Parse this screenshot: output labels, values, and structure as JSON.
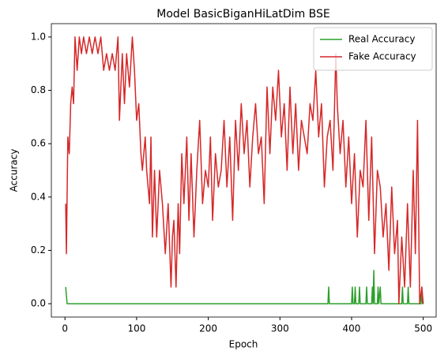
{
  "chart_data": {
    "type": "line",
    "title": "Model BasicBiganHiLatDim BSE",
    "x_label": "Epoch",
    "y_label": "Accuracy",
    "xlim": [
      -19,
      518
    ],
    "ylim": [
      -0.05,
      1.05
    ],
    "xticks": [
      0,
      100,
      200,
      300,
      400,
      500
    ],
    "yticks": [
      {
        "value": 0,
        "label": "0.0"
      },
      {
        "value": 0.2,
        "label": "0.2"
      },
      {
        "value": 0.4,
        "label": "0.4"
      },
      {
        "value": 0.6,
        "label": "0.6"
      },
      {
        "value": 0.8,
        "label": "0.8"
      },
      {
        "value": 1,
        "label": "1.0"
      }
    ],
    "legend": "upper right",
    "series": [
      {
        "name": "Real Accuracy",
        "color": "#2ca02c",
        "x": [
          1,
          3,
          367,
          368,
          369,
          400,
          401,
          402,
          404,
          405,
          406,
          410,
          411,
          412,
          420,
          421,
          422,
          428,
          429,
          430,
          431,
          432,
          436,
          437,
          438,
          440,
          441,
          470,
          471,
          472,
          478,
          479,
          480,
          497,
          498,
          499,
          500
        ],
        "values": [
          0.0625,
          0,
          0,
          0.0625,
          0,
          0,
          0.0625,
          0,
          0,
          0.0625,
          0,
          0,
          0.0625,
          0,
          0,
          0.0625,
          0,
          0,
          0.0625,
          0,
          0.125,
          0,
          0,
          0.0625,
          0,
          0.0625,
          0,
          0,
          0.0625,
          0,
          0,
          0.0625,
          0,
          0,
          0.0625,
          0,
          0
        ]
      },
      {
        "name": "Fake Accuracy",
        "color": "#d62728",
        "x": [
          1,
          2,
          4,
          6,
          8,
          10,
          12,
          14,
          17,
          20,
          23,
          26,
          30,
          34,
          38,
          42,
          46,
          50,
          54,
          58,
          62,
          66,
          70,
          74,
          76,
          80,
          83,
          86,
          88,
          90,
          94,
          97,
          100,
          103,
          106,
          108,
          112,
          114,
          118,
          120,
          122,
          125,
          128,
          132,
          136,
          140,
          144,
          148,
          150,
          152,
          155,
          158,
          160,
          163,
          166,
          170,
          173,
          176,
          180,
          184,
          188,
          192,
          196,
          200,
          203,
          206,
          210,
          214,
          218,
          222,
          226,
          230,
          234,
          238,
          242,
          246,
          250,
          254,
          258,
          262,
          266,
          270,
          274,
          278,
          282,
          286,
          290,
          294,
          298,
          302,
          306,
          310,
          314,
          318,
          322,
          326,
          330,
          334,
          338,
          342,
          346,
          350,
          354,
          358,
          362,
          366,
          370,
          374,
          378,
          380,
          384,
          388,
          392,
          396,
          400,
          404,
          408,
          412,
          416,
          420,
          424,
          428,
          432,
          436,
          440,
          444,
          448,
          452,
          456,
          460,
          464,
          466,
          470,
          474,
          478,
          482,
          486,
          489,
          492,
          495,
          498,
          500
        ],
        "values": [
          0.375,
          0.1875,
          0.625,
          0.5625,
          0.75,
          0.8125,
          0.75,
          1,
          0.875,
          1,
          0.9375,
          1,
          0.9375,
          1,
          0.9375,
          1,
          0.9375,
          1,
          0.875,
          0.9375,
          0.875,
          0.9375,
          0.875,
          1,
          0.6875,
          0.9375,
          0.75,
          0.9375,
          0.875,
          0.8125,
          1,
          0.875,
          0.6875,
          0.75,
          0.5625,
          0.5,
          0.625,
          0.5,
          0.375,
          0.625,
          0.25,
          0.5,
          0.25,
          0.5,
          0.375,
          0.1875,
          0.375,
          0.0625,
          0.25,
          0.3125,
          0.0625,
          0.375,
          0.1875,
          0.5625,
          0.375,
          0.625,
          0.3125,
          0.5625,
          0.25,
          0.5,
          0.6875,
          0.375,
          0.5,
          0.4375,
          0.625,
          0.3125,
          0.5625,
          0.4375,
          0.5,
          0.6875,
          0.4375,
          0.625,
          0.3125,
          0.6875,
          0.5,
          0.75,
          0.5625,
          0.6875,
          0.4375,
          0.625,
          0.75,
          0.5625,
          0.625,
          0.375,
          0.8125,
          0.5625,
          0.8125,
          0.6875,
          0.875,
          0.625,
          0.75,
          0.5,
          0.8125,
          0.5625,
          0.75,
          0.5,
          0.6875,
          0.625,
          0.5625,
          0.75,
          0.6875,
          0.875,
          0.625,
          0.75,
          0.4375,
          0.625,
          0.6875,
          0.5,
          0.9375,
          0.75,
          0.5625,
          0.6875,
          0.4375,
          0.625,
          0.375,
          0.5625,
          0.25,
          0.5,
          0.4375,
          0.6875,
          0.3125,
          0.625,
          0.1875,
          0.5,
          0.4375,
          0.25,
          0.375,
          0.125,
          0.4375,
          0.1875,
          0.3125,
          0,
          0.25,
          0.0625,
          0.375,
          0.0625,
          0.5,
          0.1875,
          0.6875,
          0,
          0.0625,
          0
        ]
      }
    ]
  }
}
